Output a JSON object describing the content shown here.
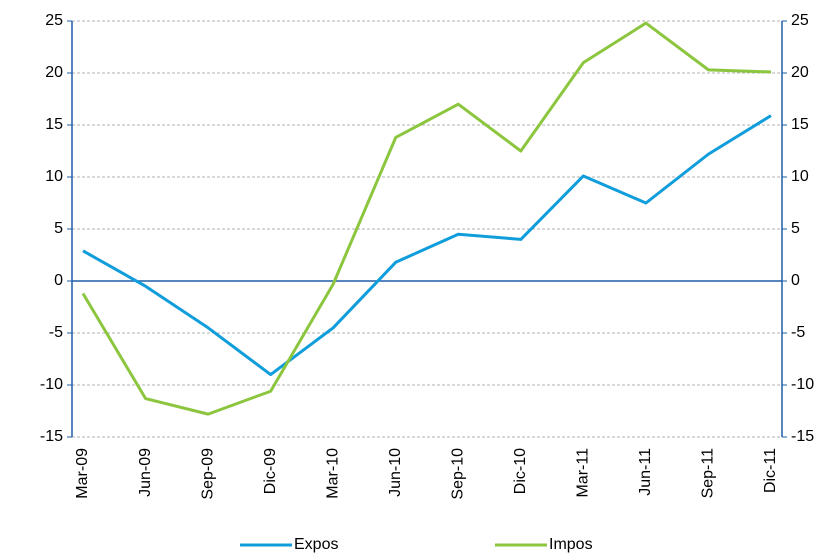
{
  "chart_data": {
    "type": "line",
    "categories": [
      "Mar-09",
      "Jun-09",
      "Sep-09",
      "Dic-09",
      "Mar-10",
      "Jun-10",
      "Sep-10",
      "Dic-10",
      "Mar-11",
      "Jun-11",
      "Sep-11",
      "Dic-11"
    ],
    "series": [
      {
        "name": "Expos",
        "color": "#0f9ddb",
        "values": [
          2.9,
          -0.5,
          -4.5,
          -9,
          -4.5,
          1.8,
          4.5,
          4,
          10.1,
          7.5,
          12.2,
          15.9
        ]
      },
      {
        "name": "Impos",
        "color": "#8cc63e",
        "values": [
          -1.2,
          -11.3,
          -12.8,
          -10.6,
          -0.3,
          13.8,
          17,
          12.5,
          21,
          24.8,
          20.3,
          20.1
        ]
      }
    ],
    "ylim": [
      -15,
      25
    ],
    "yticks": [
      -15,
      -10,
      -5,
      0,
      5,
      10,
      15,
      20,
      25
    ],
    "y2lim": [
      -15,
      25
    ],
    "y2ticks": [
      -15,
      -10,
      -5,
      0,
      5,
      10,
      15,
      20,
      25
    ],
    "grid": true,
    "legend": "bottom"
  }
}
